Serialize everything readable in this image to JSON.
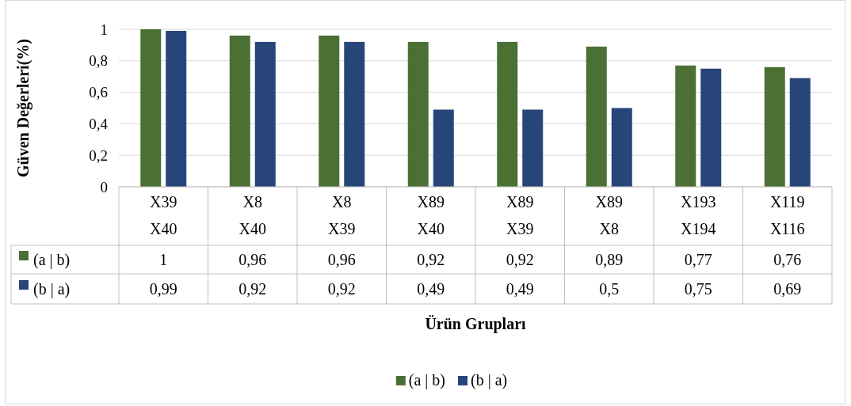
{
  "chart_data": {
    "type": "bar",
    "xlabel": "Ürün Grupları",
    "ylabel": "Güven Değerleri(%)",
    "categories": [
      "X39\nX40",
      "X8\nX40",
      "X8\nX39",
      "X89\nX40",
      "X89\nX39",
      "X89\nX8",
      "X193\nX194",
      "X119\nX116"
    ],
    "series": [
      {
        "name": "(a | b)",
        "color": "#4a7034",
        "values": [
          1,
          0.96,
          0.96,
          0.92,
          0.92,
          0.89,
          0.77,
          0.76
        ],
        "value_labels": [
          "1",
          "0,96",
          "0,96",
          "0,92",
          "0,92",
          "0,89",
          "0,77",
          "0,76"
        ]
      },
      {
        "name": "(b | a)",
        "color": "#284579",
        "values": [
          0.99,
          0.92,
          0.92,
          0.49,
          0.49,
          0.5,
          0.75,
          0.69
        ],
        "value_labels": [
          "0,99",
          "0,92",
          "0,92",
          "0,49",
          "0,49",
          "0,5",
          "0,75",
          "0,69"
        ]
      }
    ],
    "ylim": [
      0,
      1
    ],
    "yticks": [
      0,
      {
        "value": 0.2,
        "label": "0,2"
      },
      {
        "value": 0.4,
        "label": "0,4"
      },
      {
        "value": 0.6,
        "label": "0,6"
      },
      {
        "value": 0.8,
        "label": "0,8"
      },
      1
    ],
    "grid": "y",
    "legend": "bottom"
  }
}
